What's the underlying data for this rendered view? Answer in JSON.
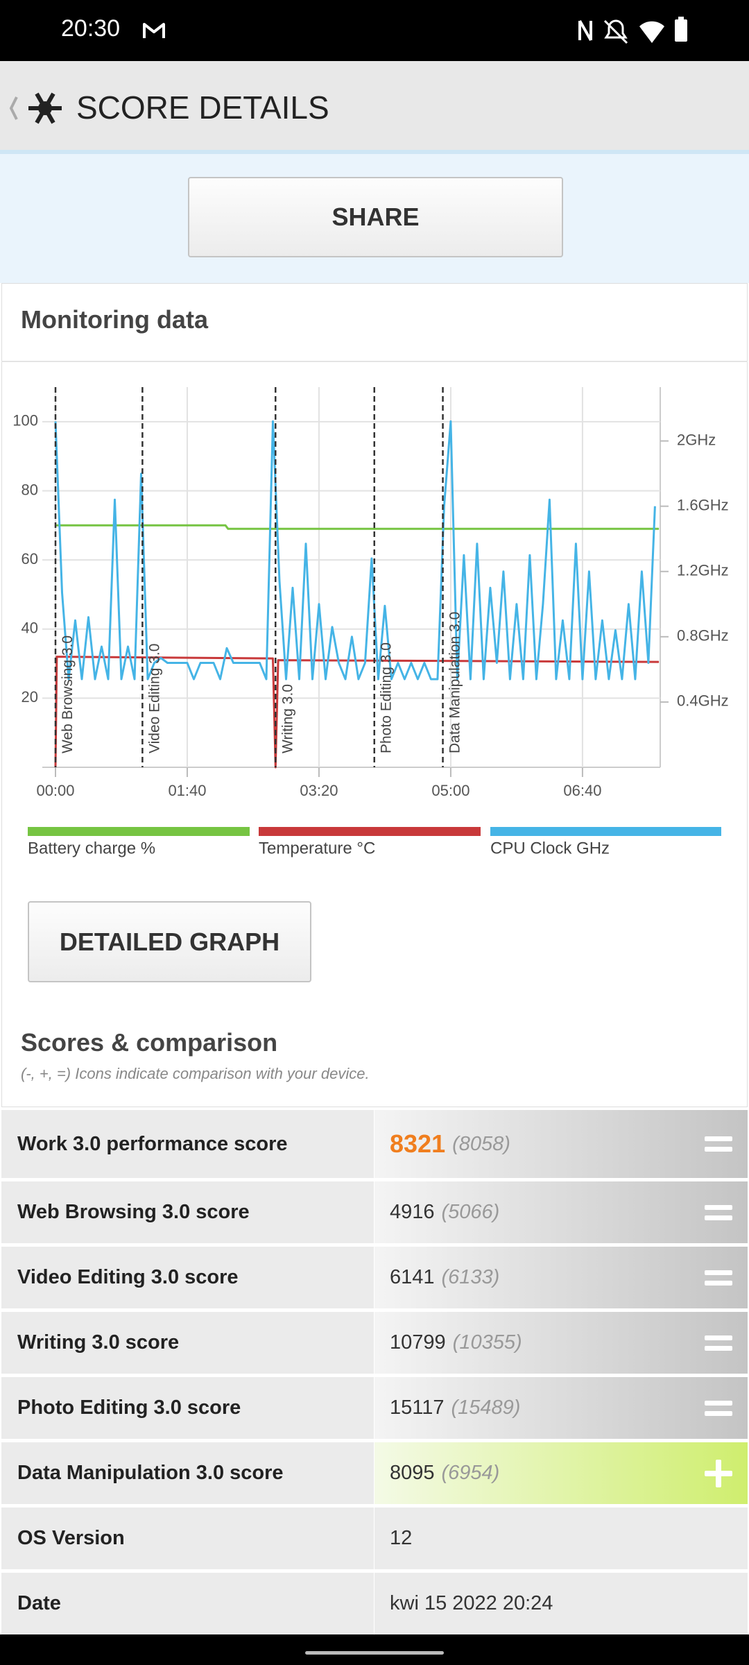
{
  "status_bar": {
    "time": "20:30"
  },
  "header": {
    "title": "SCORE DETAILS"
  },
  "share_button": "SHARE",
  "monitoring": {
    "title": "Monitoring data",
    "detailed_button": "DETAILED GRAPH"
  },
  "chart_data": {
    "type": "line",
    "xlim": [
      -10,
      459
    ],
    "xticks": [
      {
        "value": 0,
        "label": "00:00"
      },
      {
        "value": 100,
        "label": "01:40"
      },
      {
        "value": 200,
        "label": "03:20"
      },
      {
        "value": 300,
        "label": "05:00"
      },
      {
        "value": 400,
        "label": "06:40"
      }
    ],
    "ylim": [
      0,
      110
    ],
    "yticks": [
      20,
      40,
      60,
      80,
      100
    ],
    "y2lim": [
      0,
      2.33
    ],
    "y2ticks": [
      {
        "value": 0.4,
        "label": "0.4GHz"
      },
      {
        "value": 0.8,
        "label": "0.8GHz"
      },
      {
        "value": 1.2,
        "label": "1.2GHz"
      },
      {
        "value": 1.6,
        "label": "1.6GHz"
      },
      {
        "value": 2,
        "label": "2GHz"
      }
    ],
    "grid": true,
    "annotations": [
      {
        "x": 0,
        "text": "Web Browsing 3.0"
      },
      {
        "x": 66,
        "text": "Video Editing 3.0"
      },
      {
        "x": 167,
        "text": "Writing 3.0"
      },
      {
        "x": 242,
        "text": "Photo Editing 3.0"
      },
      {
        "x": 294,
        "text": "Data Manipulation 3.0"
      }
    ],
    "series": [
      {
        "name": "Battery charge %",
        "color": "#76c442",
        "x": [
          0,
          129,
          131,
          458
        ],
        "values": [
          70,
          70,
          69,
          69
        ]
      },
      {
        "name": "Temperature °C",
        "color": "#c8393a",
        "x": [
          0,
          1,
          165,
          167,
          169,
          458
        ],
        "values": [
          0,
          32,
          31.5,
          0,
          31,
          30.5
        ]
      },
      {
        "name": "CPU Clock GHz",
        "color": "#45b4e6",
        "axis": "y2",
        "x": [
          0,
          5,
          10,
          15,
          20,
          25,
          30,
          35,
          40,
          45,
          50,
          55,
          60,
          65,
          70,
          75,
          80,
          85,
          90,
          95,
          100,
          105,
          110,
          115,
          120,
          125,
          130,
          135,
          140,
          145,
          150,
          155,
          160,
          165,
          170,
          175,
          180,
          185,
          190,
          195,
          200,
          205,
          210,
          215,
          220,
          225,
          230,
          235,
          240,
          245,
          250,
          255,
          260,
          265,
          270,
          275,
          280,
          285,
          290,
          295,
          300,
          305,
          310,
          315,
          320,
          325,
          330,
          335,
          340,
          345,
          350,
          355,
          360,
          365,
          370,
          375,
          380,
          385,
          390,
          395,
          400,
          405,
          410,
          415,
          420,
          425,
          430,
          435,
          440,
          445,
          450,
          455
        ],
        "values": [
          2.12,
          1.07,
          0.54,
          0.9,
          0.54,
          0.92,
          0.54,
          0.74,
          0.54,
          1.64,
          0.54,
          0.74,
          0.54,
          1.8,
          0.54,
          0.64,
          0.67,
          0.64,
          0.64,
          0.64,
          0.64,
          0.54,
          0.64,
          0.64,
          0.64,
          0.54,
          0.73,
          0.64,
          0.64,
          0.64,
          0.64,
          0.64,
          0.54,
          2.12,
          1.14,
          0.54,
          1.1,
          0.54,
          1.37,
          0.54,
          1.0,
          0.54,
          0.86,
          0.64,
          0.54,
          0.8,
          0.54,
          0.64,
          1.28,
          0.54,
          0.99,
          0.54,
          0.64,
          0.54,
          0.64,
          0.54,
          0.64,
          0.54,
          0.54,
          1.6,
          2.12,
          0.54,
          1.3,
          0.54,
          1.37,
          0.54,
          1.1,
          0.64,
          1.2,
          0.54,
          1.0,
          0.54,
          1.3,
          0.54,
          1.0,
          1.64,
          0.54,
          0.9,
          0.54,
          1.37,
          0.54,
          1.2,
          0.54,
          0.9,
          0.54,
          0.84,
          0.54,
          1.0,
          0.54,
          1.2,
          0.64,
          1.6
        ]
      }
    ]
  },
  "scores": {
    "title": "Scores & comparison",
    "subtitle": "(-, +, =) Icons indicate comparison with your device.",
    "rows": [
      {
        "label": "Work 3.0 performance score",
        "score": "8321",
        "reference": "(8058)",
        "comparison": "="
      },
      {
        "label": "Web Browsing 3.0 score",
        "score": "4916",
        "reference": "(5066)",
        "comparison": "="
      },
      {
        "label": "Video Editing 3.0 score",
        "score": "6141",
        "reference": "(6133)",
        "comparison": "="
      },
      {
        "label": "Writing 3.0 score",
        "score": "10799",
        "reference": "(10355)",
        "comparison": "="
      },
      {
        "label": "Photo Editing 3.0 score",
        "score": "15117",
        "reference": "(15489)",
        "comparison": "="
      },
      {
        "label": "Data Manipulation 3.0 score",
        "score": "8095",
        "reference": "(6954)",
        "comparison": "+"
      },
      {
        "label": "OS Version",
        "score": "12"
      },
      {
        "label": "Date",
        "score": "kwi 15 2022 20:24"
      }
    ]
  }
}
